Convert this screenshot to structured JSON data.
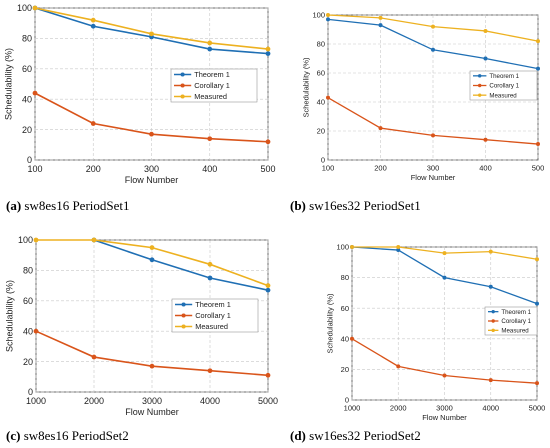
{
  "colors": {
    "theorem": "#1f6fb4",
    "corollary": "#d9541a",
    "measured": "#edb120",
    "grid": "#c8c8c8",
    "axis": "#444444"
  },
  "chart_data": [
    {
      "type": "line",
      "caption_letter": "(a)",
      "caption_text": " sw8es16 PeriodSet1",
      "xlabel": "Flow Number",
      "ylabel": "Schedulability (%)",
      "x": [
        100,
        200,
        300,
        400,
        500
      ],
      "xlim": [
        100,
        500
      ],
      "ylim": [
        0,
        100
      ],
      "yticks": [
        0,
        20,
        40,
        60,
        80,
        100
      ],
      "grid": true,
      "legend_position": "right",
      "series": [
        {
          "name": "Theorem 1",
          "color": "#1f6fb4",
          "values": [
            100,
            88,
            81,
            73,
            70
          ]
        },
        {
          "name": "Corollary 1",
          "color": "#d9541a",
          "values": [
            44,
            24,
            17,
            14,
            12
          ]
        },
        {
          "name": "Measured",
          "color": "#edb120",
          "values": [
            100,
            92,
            83,
            77,
            73
          ]
        }
      ]
    },
    {
      "type": "line",
      "caption_letter": "(b)",
      "caption_text": " sw16es32 PeriodSet1",
      "xlabel": "Flow Number",
      "ylabel": "Schedulability (%)",
      "x": [
        100,
        200,
        300,
        400,
        500
      ],
      "xlim": [
        100,
        500
      ],
      "ylim": [
        0,
        100
      ],
      "yticks": [
        0,
        20,
        40,
        60,
        80,
        100
      ],
      "grid": true,
      "legend_position": "right",
      "series": [
        {
          "name": "Theorem 1",
          "color": "#1f6fb4",
          "values": [
            97,
            93,
            76,
            70,
            63
          ]
        },
        {
          "name": "Corollary 1",
          "color": "#d9541a",
          "values": [
            43,
            22,
            17,
            14,
            11
          ]
        },
        {
          "name": "Measured",
          "color": "#edb120",
          "values": [
            100,
            98,
            92,
            89,
            82
          ]
        }
      ]
    },
    {
      "type": "line",
      "caption_letter": "(c)",
      "caption_text": " sw8es16 PeriodSet2",
      "xlabel": "Flow Number",
      "ylabel": "Schedulability (%)",
      "x": [
        1000,
        2000,
        3000,
        4000,
        5000
      ],
      "xlim": [
        1000,
        5000
      ],
      "ylim": [
        0,
        100
      ],
      "yticks": [
        0,
        20,
        40,
        60,
        80,
        100
      ],
      "grid": true,
      "legend_position": "right",
      "series": [
        {
          "name": "Theorem 1",
          "color": "#1f6fb4",
          "values": [
            null,
            100,
            87,
            75,
            67
          ]
        },
        {
          "name": "Corollary 1",
          "color": "#d9541a",
          "values": [
            40,
            23,
            17,
            14,
            11
          ]
        },
        {
          "name": "Measured",
          "color": "#edb120",
          "values": [
            100,
            100,
            95,
            84,
            70
          ]
        }
      ]
    },
    {
      "type": "line",
      "caption_letter": "(d)",
      "caption_text": " sw16es32 PeriodSet2",
      "xlabel": "Flow Number",
      "ylabel": "Schedulability (%)",
      "x": [
        1000,
        2000,
        3000,
        4000,
        5000
      ],
      "xlim": [
        1000,
        5000
      ],
      "ylim": [
        0,
        100
      ],
      "yticks": [
        0,
        20,
        40,
        60,
        80,
        100
      ],
      "grid": true,
      "legend_position": "right",
      "series": [
        {
          "name": "Theorem 1",
          "color": "#1f6fb4",
          "values": [
            100,
            98,
            80,
            74,
            63
          ]
        },
        {
          "name": "Corollary 1",
          "color": "#d9541a",
          "values": [
            40,
            22,
            16,
            13,
            11
          ]
        },
        {
          "name": "Measured",
          "color": "#edb120",
          "values": [
            100,
            100,
            96,
            97,
            92
          ]
        }
      ]
    }
  ]
}
